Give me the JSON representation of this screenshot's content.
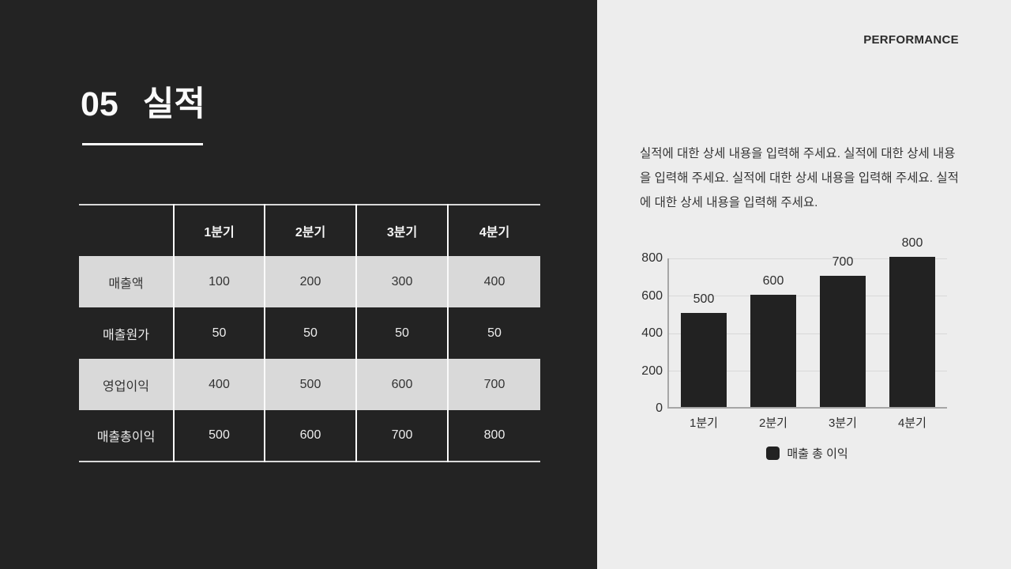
{
  "colors": {
    "left_background": "#232323",
    "right_background": "#ededed",
    "table_highlight_row": "#d9d9d9",
    "table_divider": "#fbfbfb",
    "bar_fill": "#222222",
    "text_light": "#fafafa",
    "text_dark": "#2e2e2e"
  },
  "left": {
    "section_number": "05",
    "section_title": "실적"
  },
  "right": {
    "header": "PERFORMANCE",
    "paragraph": "실적에 대한 상세 내용을 입력해 주세요. 실적에 대한 상세 내용을 입력해 주세요. 실적에 대한 상세 내용을 입력해 주세요. 실적에 대한 상세 내용을 입력해 주세요."
  },
  "table": {
    "column_headers": [
      "",
      "1분기",
      "2분기",
      "3분기",
      "4분기"
    ],
    "rows": [
      {
        "label": "매출액",
        "values": [
          "100",
          "200",
          "300",
          "400"
        ]
      },
      {
        "label": "매출원가",
        "values": [
          "50",
          "50",
          "50",
          "50"
        ]
      },
      {
        "label": "영업이익",
        "values": [
          "400",
          "500",
          "600",
          "700"
        ]
      },
      {
        "label": "매출총이익",
        "values": [
          "500",
          "600",
          "700",
          "800"
        ]
      }
    ]
  },
  "chart_data": {
    "type": "bar",
    "title": "",
    "xlabel": "",
    "ylabel": "",
    "categories": [
      "1분기",
      "2분기",
      "3분기",
      "4분기"
    ],
    "series": [
      {
        "name": "매출 총 이익",
        "values": [
          500,
          600,
          700,
          800
        ]
      }
    ],
    "data_labels": [
      "500",
      "600",
      "700",
      "800"
    ],
    "ylim": [
      0,
      800
    ],
    "yticks": [
      0,
      200,
      400,
      600,
      800
    ],
    "grid": true,
    "legend_position": "bottom",
    "bar_color": "#222222"
  }
}
